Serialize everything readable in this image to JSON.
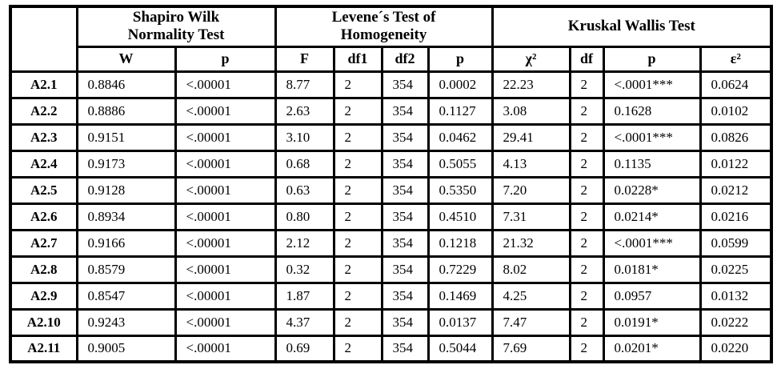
{
  "table": {
    "group_headers": [
      {
        "label": "Shapiro Wilk\nNormality Test",
        "span": 2
      },
      {
        "label": "Levene´s Test of\nHomogeneity",
        "span": 4
      },
      {
        "label": "Kruskal Wallis Test",
        "span": 4
      }
    ],
    "col_headers": [
      "W",
      "p",
      "F",
      "df1",
      "df2",
      "p",
      "χ²",
      "df",
      "p",
      "ε²"
    ],
    "rows": [
      {
        "label": "A2.1",
        "values": [
          "0.8846",
          "<.00001",
          "8.77",
          "2",
          "354",
          "0.0002",
          "22.23",
          "2",
          "<.0001***",
          "0.0624"
        ]
      },
      {
        "label": "A2.2",
        "values": [
          "0.8886",
          "<.00001",
          "2.63",
          "2",
          "354",
          "0.1127",
          "3.08",
          "2",
          "0.1628",
          "0.0102"
        ]
      },
      {
        "label": "A2.3",
        "values": [
          "0.9151",
          "<.00001",
          "3.10",
          "2",
          "354",
          "0.0462",
          "29.41",
          "2",
          "<.0001***",
          "0.0826"
        ]
      },
      {
        "label": "A2.4",
        "values": [
          "0.9173",
          "<.00001",
          "0.68",
          "2",
          "354",
          "0.5055",
          "4.13",
          "2",
          "0.1135",
          "0.0122"
        ]
      },
      {
        "label": "A2.5",
        "values": [
          "0.9128",
          "<.00001",
          "0.63",
          "2",
          "354",
          "0.5350",
          "7.20",
          "2",
          "0.0228*",
          "0.0212"
        ]
      },
      {
        "label": "A2.6",
        "values": [
          "0.8934",
          "<.00001",
          "0.80",
          "2",
          "354",
          "0.4510",
          "7.31",
          "2",
          "0.0214*",
          "0.0216"
        ]
      },
      {
        "label": "A2.7",
        "values": [
          "0.9166",
          "<.00001",
          "2.12",
          "2",
          "354",
          "0.1218",
          "21.32",
          "2",
          "<.0001***",
          "0.0599"
        ]
      },
      {
        "label": "A2.8",
        "values": [
          "0.8579",
          "<.00001",
          "0.32",
          "2",
          "354",
          "0.7229",
          "8.02",
          "2",
          "0.0181*",
          "0.0225"
        ]
      },
      {
        "label": "A2.9",
        "values": [
          "0.8547",
          "<.00001",
          "1.87",
          "2",
          "354",
          "0.1469",
          "4.25",
          "2",
          "0.0957",
          "0.0132"
        ]
      },
      {
        "label": "A2.10",
        "values": [
          "0.9243",
          "<.00001",
          "4.37",
          "2",
          "354",
          "0.0137",
          "7.47",
          "2",
          "0.0191*",
          "0.0222"
        ]
      },
      {
        "label": "A2.11",
        "values": [
          "0.9005",
          "<.00001",
          "0.69",
          "2",
          "354",
          "0.5044",
          "7.69",
          "2",
          "0.0201*",
          "0.0220"
        ]
      }
    ]
  }
}
